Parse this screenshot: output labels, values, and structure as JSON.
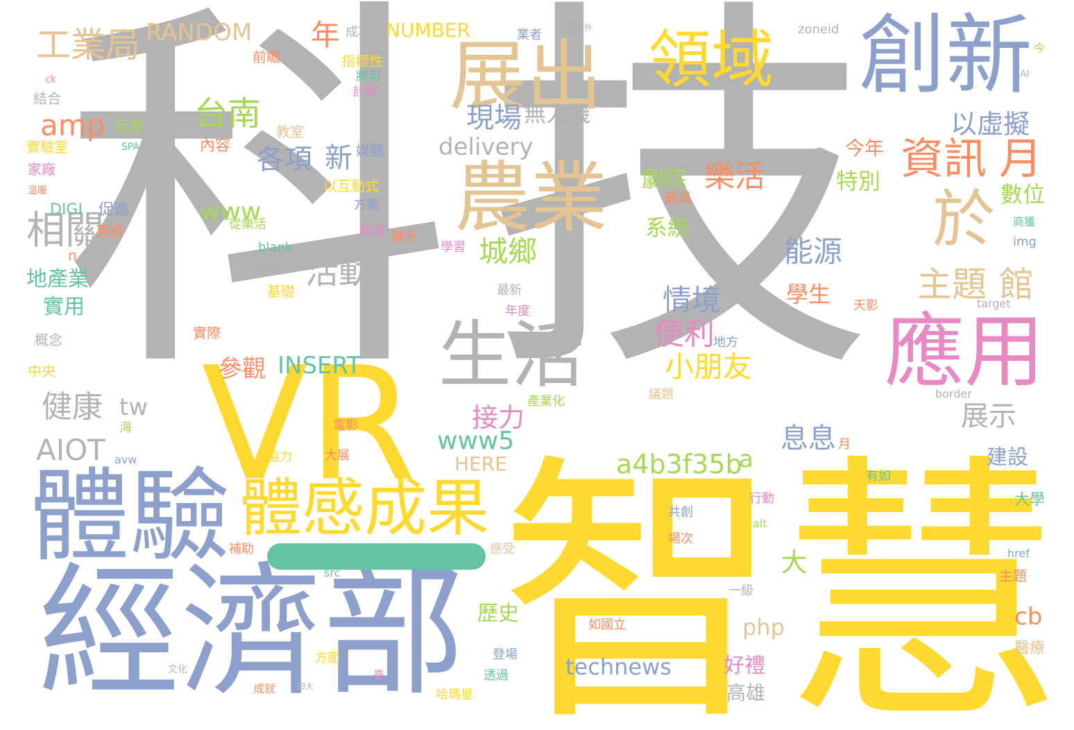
{
  "palette": {
    "gray": "#b3b3b3",
    "yellow": "#ffd92f",
    "blue": "#8da0cb",
    "tan": "#e5c494",
    "pink": "#e78ac3",
    "orange": "#fc8d62",
    "green": "#66c2a5",
    "lime": "#a6d854"
  },
  "words": [
    {
      "text": "科",
      "color": "gray"
    },
    {
      "text": "技",
      "color": "gray"
    },
    {
      "text": "智慧",
      "color": "yellow"
    },
    {
      "text": "經濟部",
      "color": "blue"
    },
    {
      "text": "VR",
      "color": "yellow"
    },
    {
      "text": "體驗",
      "color": "blue"
    },
    {
      "text": "創新",
      "color": "blue"
    },
    {
      "text": "展出",
      "color": "tan"
    },
    {
      "text": "農業",
      "color": "tan"
    },
    {
      "text": "應用",
      "color": "pink"
    },
    {
      "text": "生活",
      "color": "gray"
    },
    {
      "text": "體感成果",
      "color": "yellow"
    },
    {
      "text": "領域",
      "color": "yellow"
    },
    {
      "text": "於",
      "color": "tan"
    },
    {
      "text": "資訊",
      "color": "orange"
    },
    {
      "text": "月",
      "color": "orange"
    },
    {
      "text": "工業局",
      "color": "tan"
    },
    {
      "text": "RANDOM",
      "color": "tan"
    },
    {
      "text": "台南",
      "color": "lime"
    },
    {
      "text": "amp",
      "color": "orange"
    },
    {
      "text": "相關",
      "color": "gray"
    },
    {
      "text": "年",
      "color": "orange"
    },
    {
      "text": "NUMBER",
      "color": "yellow"
    },
    {
      "text": "成功",
      "color": "gray"
    },
    {
      "text": "業者",
      "color": "blue"
    },
    {
      "text": "內容外",
      "color": "gray"
    },
    {
      "text": "zoneid",
      "color": "gray"
    },
    {
      "text": "現場",
      "color": "blue"
    },
    {
      "text": "無人機",
      "color": "gray"
    },
    {
      "text": "以虛擬",
      "color": "blue"
    },
    {
      "text": "樂活",
      "color": "orange"
    },
    {
      "text": "主題",
      "color": "tan"
    },
    {
      "text": "館",
      "color": "tan"
    },
    {
      "text": "城鄉",
      "color": "lime"
    },
    {
      "text": "活動",
      "color": "gray"
    },
    {
      "text": "各項",
      "color": "blue"
    },
    {
      "text": "新",
      "color": "blue"
    },
    {
      "text": "delivery",
      "color": "gray"
    },
    {
      "text": "www",
      "color": "lime"
    },
    {
      "text": "能源",
      "color": "blue"
    },
    {
      "text": "情境",
      "color": "blue"
    },
    {
      "text": "便利",
      "color": "pink"
    },
    {
      "text": "小朋友",
      "color": "yellow"
    },
    {
      "text": "系統",
      "color": "lime"
    },
    {
      "text": "劇院",
      "color": "lime"
    },
    {
      "text": "今年",
      "color": "orange"
    },
    {
      "text": "特別",
      "color": "lime"
    },
    {
      "text": "數位",
      "color": "lime"
    },
    {
      "text": "學生",
      "color": "orange"
    },
    {
      "text": "健康",
      "color": "gray"
    },
    {
      "text": "tw",
      "color": "gray"
    },
    {
      "text": "AIOT",
      "color": "gray"
    },
    {
      "text": "INSERT",
      "color": "green"
    },
    {
      "text": "參觀",
      "color": "orange"
    },
    {
      "text": "接力",
      "color": "pink"
    },
    {
      "text": "www5",
      "color": "green"
    },
    {
      "text": "a4b3f35b",
      "color": "lime"
    },
    {
      "text": "a",
      "color": "lime"
    },
    {
      "text": "息息",
      "color": "blue"
    },
    {
      "text": "展示",
      "color": "gray"
    },
    {
      "text": "HERE",
      "color": "tan"
    },
    {
      "text": "大",
      "color": "lime"
    },
    {
      "text": "technews",
      "color": "blue"
    },
    {
      "text": "php",
      "color": "tan"
    },
    {
      "text": "cb",
      "color": "orange"
    },
    {
      "text": "好禮",
      "color": "pink"
    },
    {
      "text": "高雄",
      "color": "gray"
    },
    {
      "text": "歷史",
      "color": "lime"
    },
    {
      "text": "建設",
      "color": "blue"
    },
    {
      "text": "大學",
      "color": "green"
    },
    {
      "text": "醫療",
      "color": "tan"
    },
    {
      "text": "地產業",
      "color": "green"
    },
    {
      "text": "實用",
      "color": "green"
    },
    {
      "text": "玩家",
      "color": "lime"
    },
    {
      "text": "實驗室",
      "color": "yellow"
    },
    {
      "text": "家廠",
      "color": "pink"
    },
    {
      "text": "結合",
      "color": "gray"
    },
    {
      "text": "DIGI",
      "color": "green"
    },
    {
      "text": "促進",
      "color": "blue"
    },
    {
      "text": "英語",
      "color": "orange"
    },
    {
      "text": "內容",
      "color": "orange"
    },
    {
      "text": "教室",
      "color": "tan"
    },
    {
      "text": "指標性",
      "color": "yellow"
    },
    {
      "text": "將可",
      "color": "green"
    },
    {
      "text": "計畫",
      "color": "pink"
    },
    {
      "text": "前瞻",
      "color": "orange"
    },
    {
      "text": "媒體",
      "color": "blue"
    },
    {
      "text": "以互動式",
      "color": "yellow"
    },
    {
      "text": "方案",
      "color": "blue"
    },
    {
      "text": "跨域",
      "color": "pink"
    },
    {
      "text": "從樂活",
      "color": "lime"
    },
    {
      "text": "blank",
      "color": "green"
    },
    {
      "text": "年底",
      "color": "gray"
    },
    {
      "text": "基礎",
      "color": "yellow"
    },
    {
      "text": "攜手",
      "color": "orange"
    },
    {
      "text": "學習",
      "color": "pink"
    },
    {
      "text": "最具",
      "color": "orange"
    },
    {
      "text": "最新",
      "color": "gray"
    },
    {
      "text": "年度",
      "color": "pink"
    },
    {
      "text": "實際",
      "color": "orange"
    },
    {
      "text": "地方",
      "color": "blue"
    },
    {
      "text": "天影",
      "color": "orange"
    },
    {
      "text": "target",
      "color": "gray"
    },
    {
      "text": "img",
      "color": "blue"
    },
    {
      "text": "商獲",
      "color": "green"
    },
    {
      "text": "概念",
      "color": "gray"
    },
    {
      "text": "中央",
      "color": "yellow"
    },
    {
      "text": "電影",
      "color": "orange"
    },
    {
      "text": "產業化",
      "color": "lime"
    },
    {
      "text": "議題",
      "color": "tan"
    },
    {
      "text": "border",
      "color": "gray"
    },
    {
      "text": "協力",
      "color": "yellow"
    },
    {
      "text": "大展",
      "color": "orange"
    },
    {
      "text": "共創",
      "color": "blue"
    },
    {
      "text": "場次",
      "color": "orange"
    },
    {
      "text": "行動",
      "color": "pink"
    },
    {
      "text": "有如",
      "color": "green"
    },
    {
      "text": "alt",
      "color": "lime"
    },
    {
      "text": "補助",
      "color": "orange"
    },
    {
      "text": "感受",
      "color": "tan"
    },
    {
      "text": "一級",
      "color": "gray"
    },
    {
      "text": "href",
      "color": "blue"
    },
    {
      "text": "主題",
      "color": "orange"
    },
    {
      "text": "如國立",
      "color": "orange"
    },
    {
      "text": "登場",
      "color": "blue"
    },
    {
      "text": "透過",
      "color": "green"
    },
    {
      "text": "哈瑪星",
      "color": "yellow"
    },
    {
      "text": "方面",
      "color": "yellow"
    },
    {
      "text": "成就",
      "color": "orange"
    },
    {
      "text": "src",
      "color": "green"
    },
    {
      "text": "SPA",
      "color": "green"
    },
    {
      "text": "ck",
      "color": "pink"
    },
    {
      "text": "AI",
      "color": "gray"
    },
    {
      "text": "今",
      "color": "lime"
    },
    {
      "text": "avw",
      "color": "blue"
    },
    {
      "text": "月",
      "color": "orange"
    },
    {
      "text": "n",
      "color": "orange"
    },
    {
      "text": "海",
      "color": "lime"
    },
    {
      "text": "臺",
      "color": "pink"
    },
    {
      "text": "文化",
      "color": "gray"
    },
    {
      "text": "四大",
      "color": "gray"
    },
    {
      "text": "溫暖",
      "color": "orange"
    }
  ]
}
